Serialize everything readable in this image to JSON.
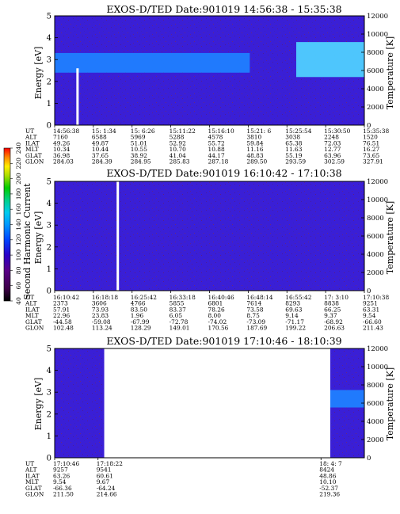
{
  "chart_data": [
    {
      "type": "heatmap",
      "title": "EXOS-D/TED  Date:901019  14:56:38 - 15:35:38",
      "ylabel": "Energy [eV]",
      "ylabel_right": "Temperature [K]",
      "ylim": [
        0,
        5
      ],
      "yticks": [
        "0",
        "1",
        "2",
        "3",
        "4",
        "5"
      ],
      "y2ticks": [
        "0",
        "2000",
        "4000",
        "6000",
        "8000",
        "10000",
        "12000"
      ],
      "background_level": 50,
      "bands": [
        {
          "x0": 0.0,
          "x1": 0.63,
          "e0": 2.4,
          "e1": 3.3,
          "level": 100
        },
        {
          "x0": 0.78,
          "x1": 1.0,
          "e0": 2.2,
          "e1": 3.8,
          "level": 120
        }
      ],
      "gaps": [
        0.07
      ],
      "table": {
        "labels": [
          "UT",
          "ALT",
          "ILAT",
          "MLT",
          "GLAT",
          "GLON"
        ],
        "columns": [
          [
            "14:56:38",
            "7160",
            "49.26",
            "10.34",
            "36.98",
            "284.03"
          ],
          [
            "15: 1:34",
            "6588",
            "49.87",
            "10.44",
            "37.65",
            "284.39"
          ],
          [
            "15: 6:26",
            "5969",
            "51.01",
            "10.55",
            "38.92",
            "284.95"
          ],
          [
            "15:11:22",
            "5288",
            "52.92",
            "10.70",
            "41.04",
            "285.83"
          ],
          [
            "15:16:10",
            "4578",
            "55.72",
            "10.88",
            "44.17",
            "287.18"
          ],
          [
            "15:21: 6",
            "3810",
            "59.84",
            "11.16",
            "48.83",
            "289.50"
          ],
          [
            "15:25:54",
            "3038",
            "65.38",
            "11.63",
            "55.19",
            "293.59"
          ],
          [
            "15:30:50",
            "2248",
            "72.03",
            "12.77",
            "63.96",
            "302.59"
          ],
          [
            "15:35:38",
            "1520",
            "76.51",
            "16.27",
            "73.65",
            "327.91"
          ]
        ]
      }
    },
    {
      "type": "heatmap",
      "title": "EXOS-D/TED  Date:901019  16:10:42 - 17:10:38",
      "ylabel": "Energy [eV]",
      "ylabel_right": "Temperature [K]",
      "ylim": [
        0,
        5
      ],
      "yticks": [
        "0",
        "1",
        "2",
        "3",
        "4",
        "5"
      ],
      "y2ticks": [
        "0",
        "2000",
        "4000",
        "6000",
        "8000",
        "10000",
        "12000"
      ],
      "background_level": 50,
      "bands": [],
      "gaps": [
        0.2
      ],
      "table": {
        "labels": [
          "UT",
          "ALT",
          "ILAT",
          "MLT",
          "GLAT",
          "GLON"
        ],
        "columns": [
          [
            "16:10:42",
            "2373",
            "57.91",
            "22.96",
            "-44.58",
            "102.48"
          ],
          [
            "16:18:18",
            "3606",
            "73.93",
            "23.83",
            "-59.08",
            "113.24"
          ],
          [
            "16:25:42",
            "4766",
            "83.50",
            "1.96",
            "-67.99",
            "128.29"
          ],
          [
            "16:33:18",
            "5855",
            "83.37",
            "6.05",
            "-72.78",
            "149.01"
          ],
          [
            "16:40:46",
            "6801",
            "78.26",
            "8.00",
            "-74.02",
            "170.56"
          ],
          [
            "16:48:14",
            "7614",
            "73.58",
            "8.75",
            "-73.09",
            "187.69"
          ],
          [
            "16:55:42",
            "8293",
            "69.63",
            "9.14",
            "-71.17",
            "199.22"
          ],
          [
            "17: 3:10",
            "8838",
            "66.25",
            "9.37",
            "-68.92",
            "206.63"
          ],
          [
            "17:10:38",
            "9251",
            "63.31",
            "9.54",
            "-66.60",
            "211.43"
          ]
        ]
      }
    },
    {
      "type": "heatmap",
      "title": "EXOS-D/TED  Date:901019  17:10:46 - 18:10:39",
      "ylabel": "Energy [eV]",
      "ylabel_right": "Temperature [K]",
      "ylim": [
        0,
        5
      ],
      "yticks": [
        "0",
        "1",
        "2",
        "3",
        "4",
        "5"
      ],
      "y2ticks": [
        "0",
        "2000",
        "4000",
        "6000",
        "8000",
        "10000",
        "12000"
      ],
      "background_level": 50,
      "bands": [
        {
          "x0": 0.89,
          "x1": 1.0,
          "e0": 2.3,
          "e1": 3.1,
          "level": 100
        }
      ],
      "data_segments": [
        [
          0.0,
          0.16
        ],
        [
          0.89,
          1.0
        ]
      ],
      "gaps": [],
      "table": {
        "labels": [
          "UT",
          "ALT",
          "ILAT",
          "MLT",
          "GLAT",
          "GLON"
        ],
        "columns": [
          [
            "17:10:46",
            "9257",
            "63.26",
            "9.54",
            "-66.36",
            "211.50"
          ],
          [
            "17:18:22",
            "9541",
            "60.61",
            "9.67",
            "-64.24",
            "214.66"
          ],
          [
            "18: 4: 7",
            "8424",
            "48.86",
            "10.10",
            "-52.37",
            "219.36"
          ]
        ],
        "column_positions": [
          0.0,
          0.14,
          0.86
        ]
      }
    }
  ],
  "colorbar": {
    "label": "Second Harmonic Current",
    "ticks": [
      "40",
      "60",
      "80",
      "100",
      "120",
      "140",
      "160",
      "180",
      "200",
      "220",
      "240"
    ],
    "colors": [
      "#000000",
      "#3d0047",
      "#5a0088",
      "#2a00c8",
      "#0044ff",
      "#0099ff",
      "#00ccee",
      "#00d088",
      "#00cc00",
      "#aadd00",
      "#ffee00",
      "#ff8800",
      "#ff0000"
    ]
  }
}
